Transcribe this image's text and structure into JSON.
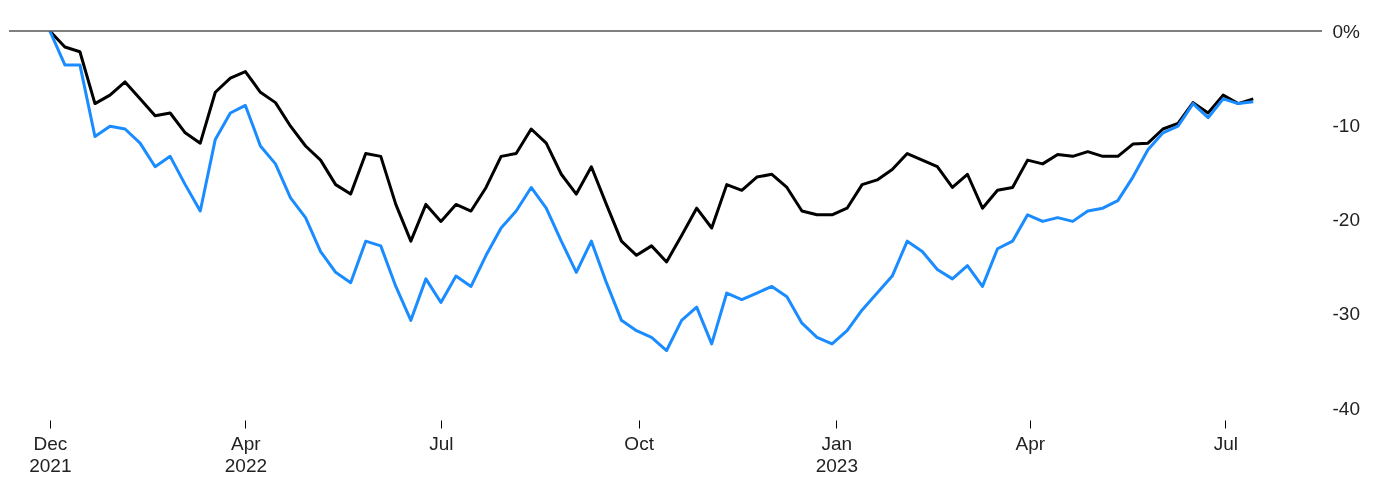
{
  "chart_data": {
    "type": "line",
    "x": [
      "2021-12-31",
      "2022-01-07",
      "2022-01-14",
      "2022-01-21",
      "2022-01-28",
      "2022-02-04",
      "2022-02-11",
      "2022-02-18",
      "2022-02-25",
      "2022-03-04",
      "2022-03-11",
      "2022-03-18",
      "2022-03-25",
      "2022-04-01",
      "2022-04-08",
      "2022-04-15",
      "2022-04-22",
      "2022-04-29",
      "2022-05-06",
      "2022-05-13",
      "2022-05-20",
      "2022-05-27",
      "2022-06-03",
      "2022-06-10",
      "2022-06-17",
      "2022-06-24",
      "2022-07-01",
      "2022-07-08",
      "2022-07-15",
      "2022-07-22",
      "2022-07-29",
      "2022-08-05",
      "2022-08-12",
      "2022-08-19",
      "2022-08-26",
      "2022-09-02",
      "2022-09-09",
      "2022-09-16",
      "2022-09-23",
      "2022-09-30",
      "2022-10-07",
      "2022-10-14",
      "2022-10-21",
      "2022-10-28",
      "2022-11-04",
      "2022-11-11",
      "2022-11-18",
      "2022-11-25",
      "2022-12-02",
      "2022-12-09",
      "2022-12-16",
      "2022-12-23",
      "2022-12-30",
      "2023-01-06",
      "2023-01-13",
      "2023-01-20",
      "2023-01-27",
      "2023-02-03",
      "2023-02-10",
      "2023-02-17",
      "2023-02-24",
      "2023-03-03",
      "2023-03-10",
      "2023-03-17",
      "2023-03-24",
      "2023-03-31",
      "2023-04-07",
      "2023-04-14",
      "2023-04-21",
      "2023-04-28",
      "2023-05-05",
      "2023-05-12",
      "2023-05-19",
      "2023-05-26",
      "2023-06-02",
      "2023-06-09",
      "2023-06-16",
      "2023-06-23",
      "2023-06-30",
      "2023-07-07",
      "2023-07-14"
    ],
    "series": [
      {
        "color": "#000000",
        "values": [
          0,
          -1.7,
          -2.2,
          -7.7,
          -6.8,
          -5.4,
          -7.2,
          -9.0,
          -8.7,
          -10.8,
          -11.9,
          -6.5,
          -5.0,
          -4.3,
          -6.5,
          -7.6,
          -10.1,
          -12.2,
          -13.7,
          -16.3,
          -17.3,
          -13.0,
          -13.3,
          -18.4,
          -22.3,
          -18.4,
          -20.2,
          -18.4,
          -19.1,
          -16.6,
          -13.3,
          -13.0,
          -10.4,
          -11.9,
          -15.2,
          -17.3,
          -14.4,
          -18.4,
          -22.3,
          -23.8,
          -22.8,
          -24.5,
          -21.7,
          -18.8,
          -20.9,
          -16.3,
          -16.9,
          -15.5,
          -15.2,
          -16.6,
          -19.1,
          -19.5,
          -19.5,
          -18.8,
          -16.3,
          -15.8,
          -14.7,
          -13.0,
          -13.7,
          -14.4,
          -16.6,
          -15.2,
          -18.8,
          -16.9,
          -16.6,
          -13.7,
          -14.1,
          -13.1,
          -13.3,
          -12.8,
          -13.3,
          -13.3,
          -12.0,
          -11.9,
          -10.4,
          -9.8,
          -7.6,
          -8.7,
          -6.8,
          -7.7,
          -7.2
        ]
      },
      {
        "color": "#1a8cff",
        "values": [
          0,
          -3.6,
          -3.6,
          -11.2,
          -10.1,
          -10.4,
          -11.9,
          -14.4,
          -13.3,
          -16.3,
          -19.1,
          -11.5,
          -8.7,
          -7.9,
          -12.2,
          -14.1,
          -17.7,
          -19.8,
          -23.4,
          -25.6,
          -26.7,
          -22.3,
          -22.8,
          -27.1,
          -30.7,
          -26.3,
          -28.8,
          -26.0,
          -27.1,
          -23.8,
          -20.9,
          -19.1,
          -16.6,
          -18.8,
          -22.3,
          -25.6,
          -22.3,
          -26.7,
          -30.7,
          -31.8,
          -32.5,
          -33.9,
          -30.7,
          -29.3,
          -33.2,
          -27.8,
          -28.5,
          -27.8,
          -27.1,
          -28.2,
          -31.0,
          -32.5,
          -33.2,
          -31.8,
          -29.6,
          -27.8,
          -26.0,
          -22.3,
          -23.4,
          -25.3,
          -26.3,
          -24.9,
          -27.1,
          -23.1,
          -22.3,
          -19.5,
          -20.2,
          -19.8,
          -20.2,
          -19.1,
          -18.8,
          -18.0,
          -15.5,
          -12.6,
          -10.8,
          -10.1,
          -7.7,
          -9.2,
          -7.2,
          -7.7,
          -7.5
        ]
      }
    ],
    "xlim": [
      "2021-12-12",
      "2023-08-15"
    ],
    "xticks": [
      {
        "value": "2021-12-31",
        "label": "Dec 2021"
      },
      {
        "value": "2022-04-01",
        "label": "Apr 2022"
      },
      {
        "value": "2022-07-01",
        "label": "Jul"
      },
      {
        "value": "2022-10-01",
        "label": "Oct"
      },
      {
        "value": "2023-01-01",
        "label": "Jan 2023"
      },
      {
        "value": "2023-04-01",
        "label": "Apr"
      },
      {
        "value": "2023-07-01",
        "label": "Jul"
      }
    ],
    "ylim": [
      -40,
      0
    ],
    "yticks": [
      {
        "value": 0,
        "label": "0%"
      },
      {
        "value": -10,
        "label": "-10"
      },
      {
        "value": -20,
        "label": "-20"
      },
      {
        "value": -30,
        "label": "-30"
      },
      {
        "value": -40,
        "label": "-40"
      }
    ],
    "ref_lines": [
      {
        "axis": "y",
        "value": 0,
        "color": "#555555"
      }
    ],
    "grid": false
  }
}
